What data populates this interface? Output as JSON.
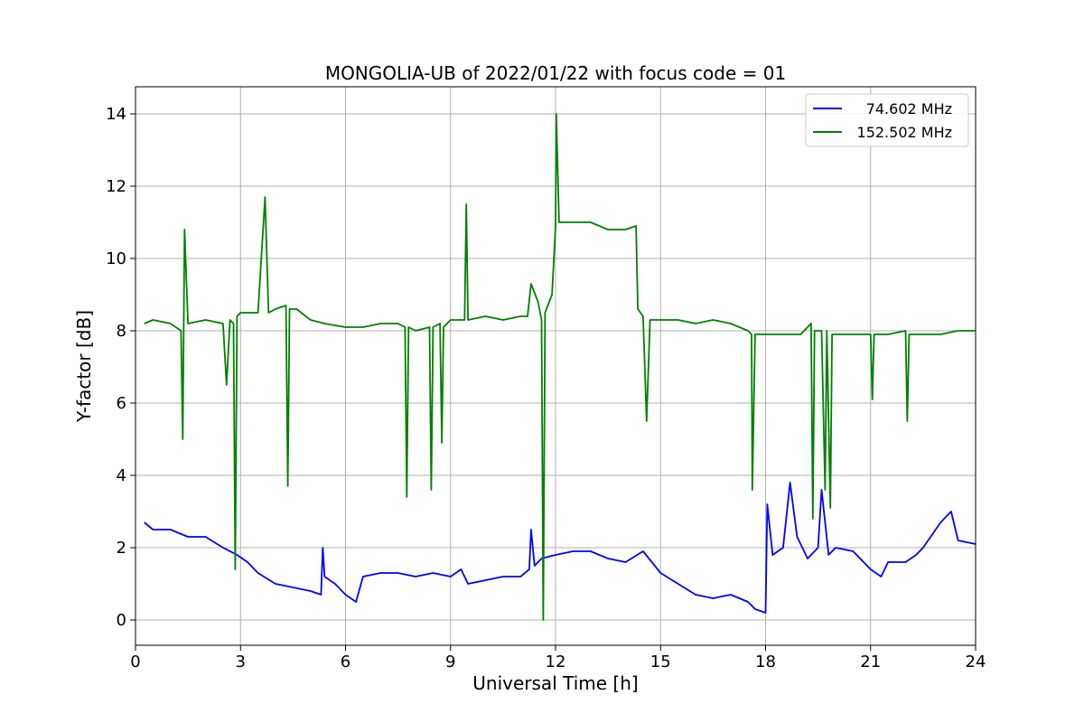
{
  "chart_data": {
    "type": "line",
    "title": "MONGOLIA-UB of 2022/01/22 with focus code = 01",
    "xlabel": "Universal Time [h]",
    "ylabel": "Y-factor [dB]",
    "xlim": [
      0,
      24
    ],
    "ylim": [
      -0.7,
      14.75
    ],
    "xticks": [
      0,
      3,
      6,
      9,
      12,
      15,
      18,
      21,
      24
    ],
    "yticks": [
      0,
      2,
      4,
      6,
      8,
      10,
      12,
      14
    ],
    "grid": true,
    "legend_position": "top-right",
    "series": [
      {
        "name": "74.602 MHz",
        "color": "#0000ff",
        "points": [
          [
            0.25,
            2.7
          ],
          [
            0.5,
            2.5
          ],
          [
            1.0,
            2.5
          ],
          [
            1.5,
            2.3
          ],
          [
            2.0,
            2.3
          ],
          [
            2.5,
            2.0
          ],
          [
            2.9,
            1.8
          ],
          [
            3.2,
            1.6
          ],
          [
            3.5,
            1.3
          ],
          [
            4.0,
            1.0
          ],
          [
            4.5,
            0.9
          ],
          [
            5.0,
            0.8
          ],
          [
            5.3,
            0.7
          ],
          [
            5.35,
            2.0
          ],
          [
            5.4,
            1.2
          ],
          [
            5.7,
            1.0
          ],
          [
            6.0,
            0.7
          ],
          [
            6.3,
            0.5
          ],
          [
            6.5,
            1.2
          ],
          [
            7.0,
            1.3
          ],
          [
            7.5,
            1.3
          ],
          [
            8.0,
            1.2
          ],
          [
            8.5,
            1.3
          ],
          [
            9.0,
            1.2
          ],
          [
            9.3,
            1.4
          ],
          [
            9.5,
            1.0
          ],
          [
            10.0,
            1.1
          ],
          [
            10.5,
            1.2
          ],
          [
            11.0,
            1.2
          ],
          [
            11.25,
            1.4
          ],
          [
            11.3,
            2.5
          ],
          [
            11.4,
            1.5
          ],
          [
            11.6,
            1.7
          ],
          [
            12.0,
            1.8
          ],
          [
            12.5,
            1.9
          ],
          [
            13.0,
            1.9
          ],
          [
            13.5,
            1.7
          ],
          [
            14.0,
            1.6
          ],
          [
            14.5,
            1.9
          ],
          [
            15.0,
            1.3
          ],
          [
            15.5,
            1.0
          ],
          [
            16.0,
            0.7
          ],
          [
            16.5,
            0.6
          ],
          [
            17.0,
            0.7
          ],
          [
            17.5,
            0.5
          ],
          [
            17.7,
            0.3
          ],
          [
            18.0,
            0.2
          ],
          [
            18.05,
            3.2
          ],
          [
            18.2,
            1.8
          ],
          [
            18.5,
            2.0
          ],
          [
            18.7,
            3.8
          ],
          [
            18.9,
            2.3
          ],
          [
            19.2,
            1.7
          ],
          [
            19.5,
            2.0
          ],
          [
            19.6,
            3.6
          ],
          [
            19.8,
            1.8
          ],
          [
            20.0,
            2.0
          ],
          [
            20.5,
            1.9
          ],
          [
            21.0,
            1.4
          ],
          [
            21.3,
            1.2
          ],
          [
            21.5,
            1.6
          ],
          [
            22.0,
            1.6
          ],
          [
            22.3,
            1.8
          ],
          [
            22.5,
            2.0
          ],
          [
            23.0,
            2.7
          ],
          [
            23.3,
            3.0
          ],
          [
            23.5,
            2.2
          ],
          [
            24.0,
            2.1
          ]
        ]
      },
      {
        "name": "152.502 MHz",
        "color": "#008000",
        "points": [
          [
            0.25,
            8.2
          ],
          [
            0.5,
            8.3
          ],
          [
            1.0,
            8.2
          ],
          [
            1.3,
            8.0
          ],
          [
            1.35,
            5.0
          ],
          [
            1.4,
            10.8
          ],
          [
            1.5,
            8.2
          ],
          [
            2.0,
            8.3
          ],
          [
            2.5,
            8.2
          ],
          [
            2.6,
            6.5
          ],
          [
            2.7,
            8.3
          ],
          [
            2.8,
            8.2
          ],
          [
            2.85,
            1.4
          ],
          [
            2.9,
            8.4
          ],
          [
            3.0,
            8.5
          ],
          [
            3.5,
            8.5
          ],
          [
            3.7,
            11.7
          ],
          [
            3.8,
            8.5
          ],
          [
            4.0,
            8.6
          ],
          [
            4.3,
            8.7
          ],
          [
            4.35,
            3.7
          ],
          [
            4.4,
            8.6
          ],
          [
            4.6,
            8.6
          ],
          [
            5.0,
            8.3
          ],
          [
            5.4,
            8.2
          ],
          [
            6.0,
            8.1
          ],
          [
            6.5,
            8.1
          ],
          [
            7.0,
            8.2
          ],
          [
            7.5,
            8.2
          ],
          [
            7.7,
            8.1
          ],
          [
            7.75,
            3.4
          ],
          [
            7.8,
            8.1
          ],
          [
            8.0,
            8.0
          ],
          [
            8.4,
            8.1
          ],
          [
            8.45,
            3.6
          ],
          [
            8.5,
            8.1
          ],
          [
            8.7,
            8.2
          ],
          [
            8.75,
            4.9
          ],
          [
            8.8,
            8.1
          ],
          [
            9.0,
            8.3
          ],
          [
            9.4,
            8.3
          ],
          [
            9.45,
            11.5
          ],
          [
            9.5,
            8.3
          ],
          [
            10.0,
            8.4
          ],
          [
            10.5,
            8.3
          ],
          [
            11.0,
            8.4
          ],
          [
            11.2,
            8.4
          ],
          [
            11.3,
            9.3
          ],
          [
            11.5,
            8.8
          ],
          [
            11.6,
            8.3
          ],
          [
            11.65,
            0.0
          ],
          [
            11.7,
            8.5
          ],
          [
            11.9,
            9.0
          ],
          [
            12.0,
            10.9
          ],
          [
            12.02,
            14.0
          ],
          [
            12.1,
            11.0
          ],
          [
            12.5,
            11.0
          ],
          [
            13.0,
            11.0
          ],
          [
            13.5,
            10.8
          ],
          [
            14.0,
            10.8
          ],
          [
            14.3,
            10.9
          ],
          [
            14.35,
            8.6
          ],
          [
            14.5,
            8.4
          ],
          [
            14.6,
            5.5
          ],
          [
            14.7,
            8.3
          ],
          [
            15.0,
            8.3
          ],
          [
            15.5,
            8.3
          ],
          [
            16.0,
            8.2
          ],
          [
            16.5,
            8.3
          ],
          [
            17.0,
            8.2
          ],
          [
            17.5,
            8.0
          ],
          [
            17.6,
            7.9
          ],
          [
            17.62,
            3.6
          ],
          [
            17.7,
            7.9
          ],
          [
            18.0,
            7.9
          ],
          [
            18.5,
            7.9
          ],
          [
            19.0,
            7.9
          ],
          [
            19.3,
            8.2
          ],
          [
            19.35,
            2.8
          ],
          [
            19.4,
            8.0
          ],
          [
            19.6,
            8.0
          ],
          [
            19.7,
            3.6
          ],
          [
            19.75,
            8.0
          ],
          [
            19.85,
            3.1
          ],
          [
            19.9,
            7.9
          ],
          [
            20.5,
            7.9
          ],
          [
            21.0,
            7.9
          ],
          [
            21.05,
            6.1
          ],
          [
            21.1,
            7.9
          ],
          [
            21.5,
            7.9
          ],
          [
            22.0,
            8.0
          ],
          [
            22.05,
            5.5
          ],
          [
            22.1,
            7.9
          ],
          [
            22.5,
            7.9
          ],
          [
            23.0,
            7.9
          ],
          [
            23.5,
            8.0
          ],
          [
            24.0,
            8.0
          ]
        ]
      }
    ]
  }
}
